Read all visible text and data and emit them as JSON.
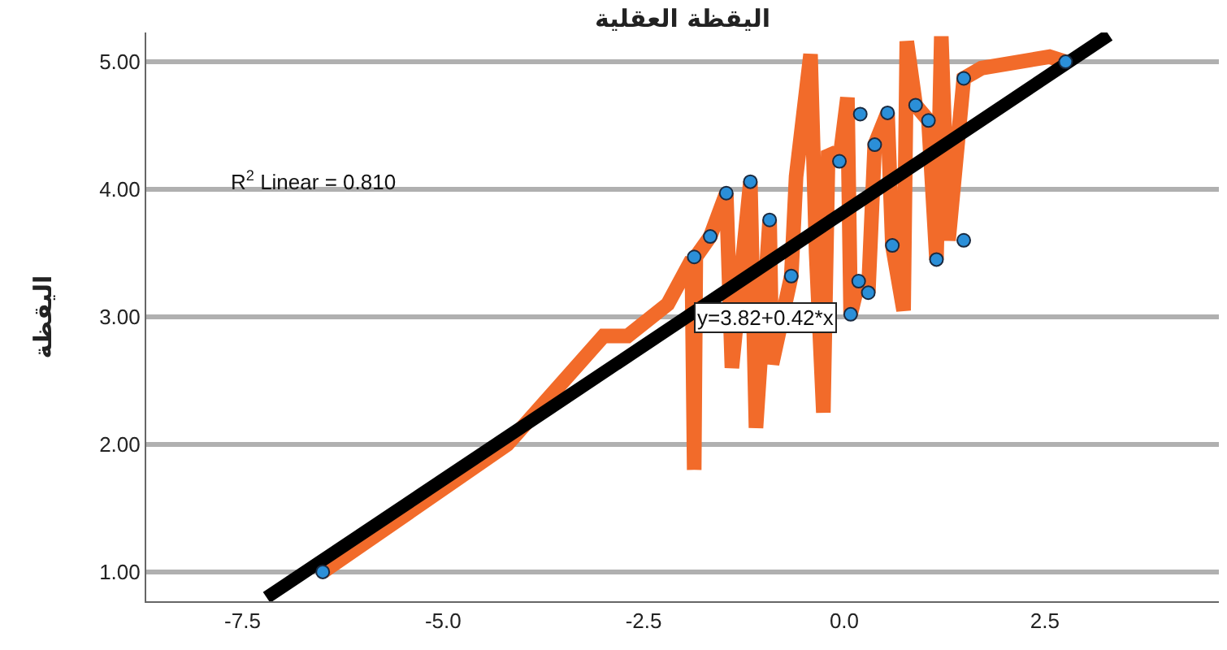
{
  "chart_data": {
    "type": "scatter",
    "title": "اليقظة العقلية",
    "ylabel": "اليقظة",
    "xlim": [
      -8.7,
      4.67
    ],
    "ylim": [
      0.77,
      5.23
    ],
    "xticks": [
      {
        "value": -7.5,
        "label": "-7.5"
      },
      {
        "value": -5,
        "label": "-5.0"
      },
      {
        "value": -2.5,
        "label": "-2.5"
      },
      {
        "value": 0,
        "label": "0.0"
      },
      {
        "value": 2.5,
        "label": "2.5"
      }
    ],
    "yticks": [
      {
        "value": 1,
        "label": "1.00"
      },
      {
        "value": 2,
        "label": "2.00"
      },
      {
        "value": 3,
        "label": "3.00"
      },
      {
        "value": 4,
        "label": "4.00"
      },
      {
        "value": 5,
        "label": "5.00"
      }
    ],
    "grid": "y",
    "marker": "circle",
    "series": [
      {
        "type": "line",
        "marker": "none",
        "color": "#f26b2a",
        "x": [
          -6.5,
          -4.2,
          -3.0,
          -2.7,
          -2.2,
          -1.9,
          -1.87,
          -1.85,
          -1.67,
          -1.47,
          -1.4,
          -1.17,
          -1.1,
          -0.93,
          -0.9,
          -0.66,
          -0.6,
          -0.42,
          -0.35,
          -0.26,
          -0.2,
          -0.06,
          0.04,
          0.08,
          0.18,
          0.3,
          0.38,
          0.54,
          0.6,
          0.74,
          0.78,
          0.89,
          1.05,
          1.15,
          1.21,
          1.3,
          1.49,
          1.71,
          2.56,
          2.76
        ],
        "values": [
          1.0,
          2.0,
          2.85,
          2.85,
          3.1,
          3.45,
          1.8,
          3.47,
          3.63,
          3.97,
          2.6,
          4.06,
          2.13,
          3.76,
          2.63,
          3.32,
          4.1,
          5.06,
          3.5,
          2.25,
          4.3,
          4.22,
          4.72,
          3.02,
          3.28,
          3.19,
          4.35,
          4.6,
          3.56,
          3.05,
          5.16,
          4.66,
          4.54,
          3.45,
          5.2,
          3.6,
          4.87,
          4.95,
          5.04,
          5.0
        ]
      },
      {
        "type": "line",
        "marker": "none",
        "color": "#000000",
        "x": [
          -7.2,
          3.3
        ],
        "values": [
          0.8,
          5.21
        ]
      },
      {
        "color": "#2b8fd8",
        "x": [
          -6.5,
          -1.87,
          -1.67,
          -1.47,
          -1.17,
          -0.93,
          -0.66,
          -0.06,
          0.08,
          0.18,
          0.2,
          0.3,
          0.38,
          0.54,
          0.6,
          0.89,
          1.05,
          1.15,
          1.49,
          1.49,
          2.76
        ],
        "values": [
          1.0,
          3.47,
          3.63,
          3.97,
          4.06,
          3.76,
          3.32,
          4.22,
          3.02,
          3.28,
          4.59,
          3.19,
          4.35,
          4.6,
          3.56,
          4.66,
          4.54,
          3.45,
          4.87,
          3.6,
          5.0
        ]
      }
    ],
    "annotations": [
      "R$^{2}$ Linear = 0.810",
      {
        "text": "y=3.82+0.42*x",
        "x": -1.87,
        "y": 3.0
      }
    ]
  }
}
